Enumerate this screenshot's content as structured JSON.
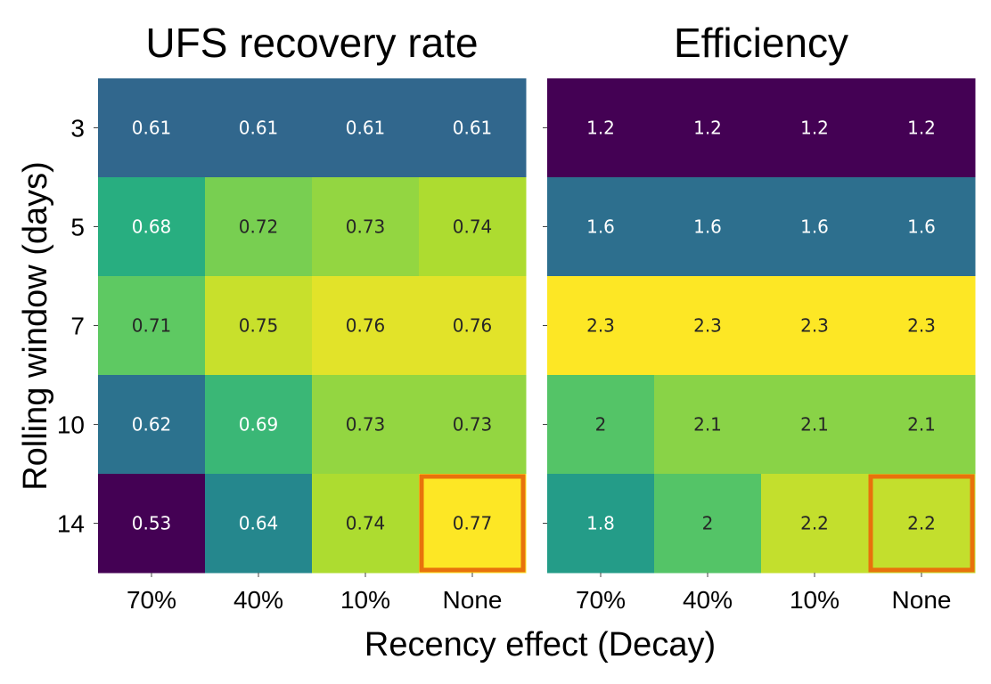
{
  "chart_data": {
    "type": "heatmap",
    "ylabel": "Rolling window (days)",
    "xlabel": "Recency effect (Decay)",
    "rows": [
      "3",
      "5",
      "7",
      "10",
      "14"
    ],
    "columns": [
      "70%",
      "40%",
      "10%",
      "None"
    ],
    "panels": [
      {
        "title": "UFS recovery rate",
        "values": [
          [
            0.61,
            0.61,
            0.61,
            0.61
          ],
          [
            0.68,
            0.72,
            0.73,
            0.74
          ],
          [
            0.71,
            0.75,
            0.76,
            0.76
          ],
          [
            0.62,
            0.69,
            0.73,
            0.73
          ],
          [
            0.53,
            0.64,
            0.74,
            0.77
          ]
        ],
        "labels": [
          [
            "0.61",
            "0.61",
            "0.61",
            "0.61"
          ],
          [
            "0.68",
            "0.72",
            "0.73",
            "0.74"
          ],
          [
            "0.71",
            "0.75",
            "0.76",
            "0.76"
          ],
          [
            "0.62",
            "0.69",
            "0.73",
            "0.73"
          ],
          [
            "0.53",
            "0.64",
            "0.74",
            "0.77"
          ]
        ],
        "highlight": {
          "row": "14",
          "column": "None"
        }
      },
      {
        "title": "Efficiency",
        "values": [
          [
            1.2,
            1.2,
            1.2,
            1.2
          ],
          [
            1.6,
            1.6,
            1.6,
            1.6
          ],
          [
            2.3,
            2.3,
            2.3,
            2.3
          ],
          [
            2.0,
            2.1,
            2.1,
            2.1
          ],
          [
            1.8,
            2.0,
            2.2,
            2.2
          ]
        ],
        "labels": [
          [
            "1.2",
            "1.2",
            "1.2",
            "1.2"
          ],
          [
            "1.6",
            "1.6",
            "1.6",
            "1.6"
          ],
          [
            "2.3",
            "2.3",
            "2.3",
            "2.3"
          ],
          [
            "2",
            "2.1",
            "2.1",
            "2.1"
          ],
          [
            "1.8",
            "2",
            "2.2",
            "2.2"
          ]
        ],
        "highlight": {
          "row": "14",
          "column": "None"
        }
      }
    ],
    "colormap": "viridis",
    "highlight_color": "#e8720c"
  }
}
